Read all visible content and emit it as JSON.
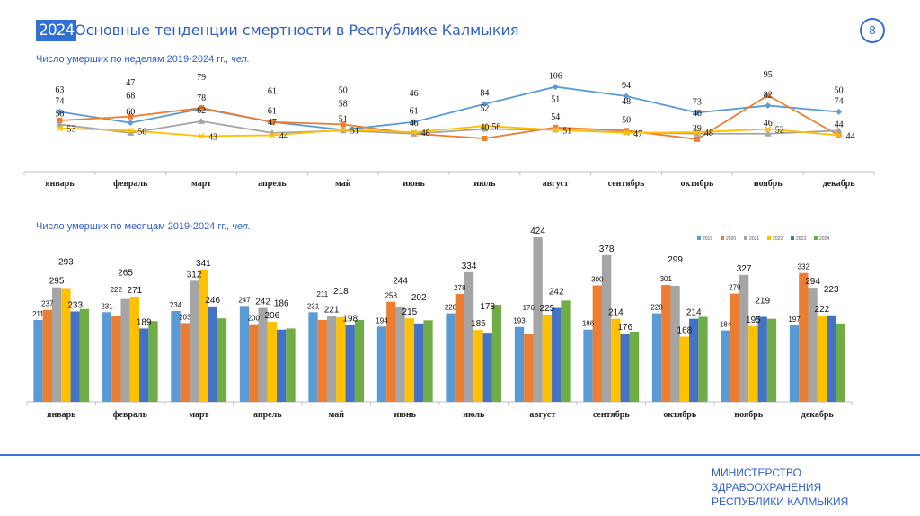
{
  "header": {
    "badge": "2024",
    "title": "Основные тенденции смертности в Республике Калмыкия",
    "page_number": "8"
  },
  "footer": {
    "lines": [
      "МИНИСТЕРСТВО",
      "ЗДРАВООХРАНЕНИЯ",
      "РЕСПУБЛИКИ КАЛМЫКИЯ"
    ]
  },
  "chart_data": [
    {
      "type": "line",
      "title": "Число умерших по неделям 2019-2024 гг.,",
      "unit": "чел.",
      "categories": [
        "январь",
        "февраль",
        "март",
        "апрель",
        "май",
        "июнь",
        "июль",
        "август",
        "сентябрь",
        "октябрь",
        "ноябрь",
        "декабрь"
      ],
      "grid": false,
      "series": [
        {
          "color": "#5b9bd5",
          "marker": "diamond",
          "values": [
            74,
            60,
            78,
            61,
            51,
            61,
            84,
            106,
            94,
            73,
            82,
            74
          ]
        },
        {
          "color": "#ed7d31",
          "marker": "square",
          "values": [
            63,
            68,
            79,
            61,
            58,
            46,
            40,
            54,
            50,
            39,
            95,
            44
          ]
        },
        {
          "color": "#a5a5a5",
          "marker": "triangle",
          "values": [
            58,
            47,
            62,
            47,
            50,
            46,
            52,
            51,
            48,
            46,
            46,
            50
          ]
        },
        {
          "color": "#ffc000",
          "marker": "x",
          "values": [
            53,
            50,
            43,
            44,
            51,
            48,
            56,
            51,
            47,
            48,
            52,
            44
          ]
        }
      ]
    },
    {
      "type": "bar",
      "title": "Число умерших по месяцам 2019-2024 гг.,",
      "unit": "чел.",
      "categories": [
        "январь",
        "февраль",
        "март",
        "апрель",
        "май",
        "июнь",
        "июль",
        "август",
        "сентябрь",
        "октябрь",
        "ноябрь",
        "декабрь"
      ],
      "legend_position": "top-right",
      "grid": false,
      "ylim": [
        0,
        424
      ],
      "series": [
        {
          "name": "2019",
          "color": "#5b9bd5",
          "values": [
            211,
            231,
            234,
            247,
            231,
            194,
            228,
            193,
            186,
            228,
            184,
            197
          ],
          "labels": [
            211,
            231,
            234,
            247,
            231,
            194,
            228,
            193,
            186,
            228,
            184,
            197
          ]
        },
        {
          "name": "2020",
          "color": "#ed7d31",
          "values": [
            237,
            222,
            203,
            200,
            211,
            258,
            278,
            176,
            300,
            301,
            279,
            332
          ],
          "labels": [
            237,
            222,
            203,
            200,
            211,
            258,
            278,
            176,
            300,
            301,
            279,
            332
          ]
        },
        {
          "name": "2021",
          "color": "#a5a5a5",
          "values": [
            295,
            265,
            312,
            242,
            221,
            244,
            334,
            424,
            378,
            299,
            327,
            294
          ],
          "labels": [
            295,
            265,
            312,
            242,
            221,
            244,
            334,
            424,
            378,
            299,
            327,
            294
          ]
        },
        {
          "name": "2022",
          "color": "#ffc000",
          "values": [
            293,
            271,
            341,
            206,
            218,
            215,
            185,
            225,
            214,
            168,
            195,
            222
          ],
          "labels": [
            293,
            271,
            341,
            206,
            218,
            215,
            185,
            225,
            214,
            168,
            195,
            222
          ]
        },
        {
          "name": "2023",
          "color": "#4472c4",
          "values": [
            233,
            189,
            246,
            186,
            198,
            202,
            178,
            242,
            176,
            214,
            219,
            223
          ],
          "labels": [
            233,
            189,
            246,
            186,
            198,
            202,
            178,
            242,
            176,
            214,
            219,
            223
          ]
        },
        {
          "name": "2024",
          "color": "#70ad47",
          "values": [
            239,
            208,
            215,
            189,
            211,
            210,
            250,
            261,
            181,
            219,
            214,
            202
          ],
          "labels": [
            null,
            null,
            null,
            null,
            null,
            null,
            null,
            null,
            null,
            null,
            null,
            null
          ]
        }
      ]
    }
  ]
}
